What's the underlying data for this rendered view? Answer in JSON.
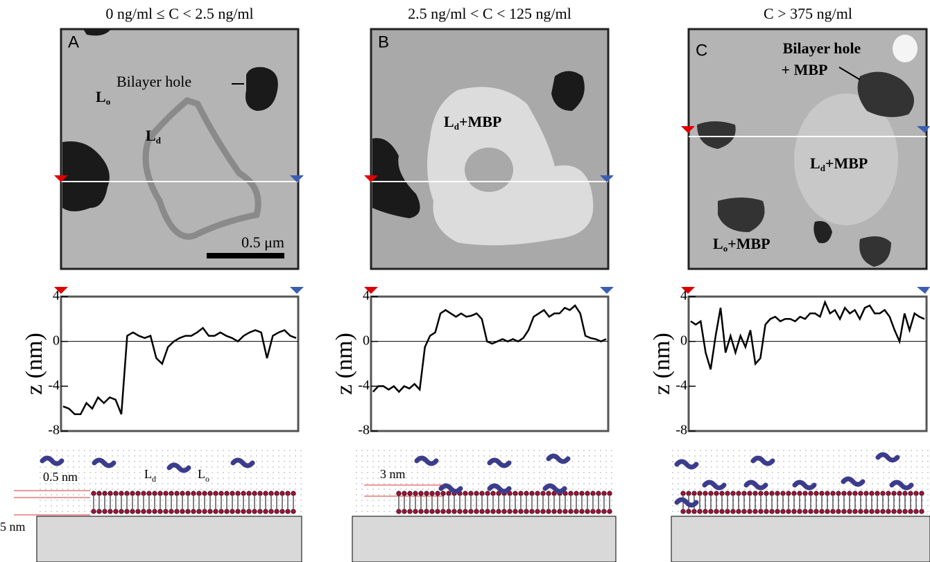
{
  "panels": [
    {
      "title": "0 ng/ml ≤ C < 2.5 ng/ml",
      "letter": "A",
      "labels": [
        {
          "base": "Bilayer hole",
          "sub": "",
          "suffix": ""
        },
        {
          "base": "L",
          "sub": "o",
          "suffix": ""
        },
        {
          "base": "L",
          "sub": "d",
          "suffix": ""
        }
      ],
      "scale_bar": "0.5 μm",
      "schematic": {
        "top_label": "0.5 nm",
        "bottom_label": "5 nm",
        "phase_1": "L",
        "phase_1_sub": "d",
        "phase_2": "L",
        "phase_2_sub": "o"
      }
    },
    {
      "title": "2.5 ng/ml < C < 125 ng/ml",
      "letter": "B",
      "labels": [
        {
          "base": "L",
          "sub": "d",
          "suffix": "+MBP"
        }
      ],
      "schematic": {
        "top_label": "3 nm"
      }
    },
    {
      "title": "C > 375 ng/ml",
      "letter": "C",
      "labels": [
        {
          "base": "Bilayer hole",
          "sub": "",
          "suffix": ""
        },
        {
          "base": "+ MBP",
          "sub": "",
          "suffix": ""
        },
        {
          "base": "L",
          "sub": "d",
          "suffix": "+MBP"
        },
        {
          "base": "L",
          "sub": "o",
          "suffix": "+MBP"
        }
      ]
    }
  ],
  "chart_data": [
    {
      "type": "line",
      "y_label": "z (nm)",
      "ylim": [
        -8,
        4
      ],
      "yticks": [
        -8,
        -4,
        0,
        4
      ],
      "color": "#000000",
      "values": [
        -5.8,
        -6,
        -6.5,
        -6.5,
        -5.5,
        -6,
        -5,
        -5.5,
        -5,
        -5.2,
        -6.5,
        0.5,
        0.8,
        0.5,
        0.3,
        0.5,
        -1.5,
        -2,
        -0.5,
        0,
        0.3,
        0.5,
        0.5,
        0.8,
        1.2,
        0.5,
        0.5,
        0.8,
        0.5,
        0.3,
        0,
        0.5,
        0.8,
        1,
        0.8,
        -1.5,
        0.5,
        0.8,
        1,
        0.5,
        0.3
      ]
    },
    {
      "type": "line",
      "y_label": "z (nm)",
      "ylim": [
        -8,
        4
      ],
      "yticks": [
        -8,
        -4,
        0,
        4
      ],
      "color": "#000000",
      "values": [
        -4.5,
        -4,
        -4,
        -4.3,
        -4,
        -4.5,
        -4,
        -4.2,
        -3.8,
        -4.3,
        -0.5,
        0.5,
        0.8,
        2.5,
        2.8,
        2.5,
        2.2,
        2.5,
        2.2,
        2.3,
        2.5,
        2,
        0,
        -0.2,
        0,
        0.2,
        0,
        0.2,
        0,
        0.3,
        1,
        2.2,
        2.5,
        2.8,
        2.2,
        2.5,
        2.5,
        3,
        2.8,
        3.2,
        2.5,
        0.5,
        0.3,
        0.2,
        0,
        0.2
      ]
    },
    {
      "type": "line",
      "y_label": "z (nm)",
      "ylim": [
        -8,
        4
      ],
      "yticks": [
        -8,
        -4,
        0,
        4
      ],
      "color": "#000000",
      "values": [
        1.8,
        1.5,
        1.8,
        -1,
        -2.5,
        0.5,
        3,
        -1,
        0.5,
        -1,
        0.5,
        -0.5,
        1,
        -2,
        -1.5,
        1.5,
        2,
        2.2,
        1.8,
        2,
        2,
        1.8,
        2.2,
        2,
        2.5,
        2.5,
        2.2,
        3.5,
        2.5,
        2.8,
        2,
        3,
        2.5,
        2.8,
        2,
        3,
        3.2,
        2.5,
        2.5,
        2.8,
        2.2,
        1,
        0,
        2.5,
        1,
        2.5,
        2.2,
        2
      ]
    }
  ]
}
